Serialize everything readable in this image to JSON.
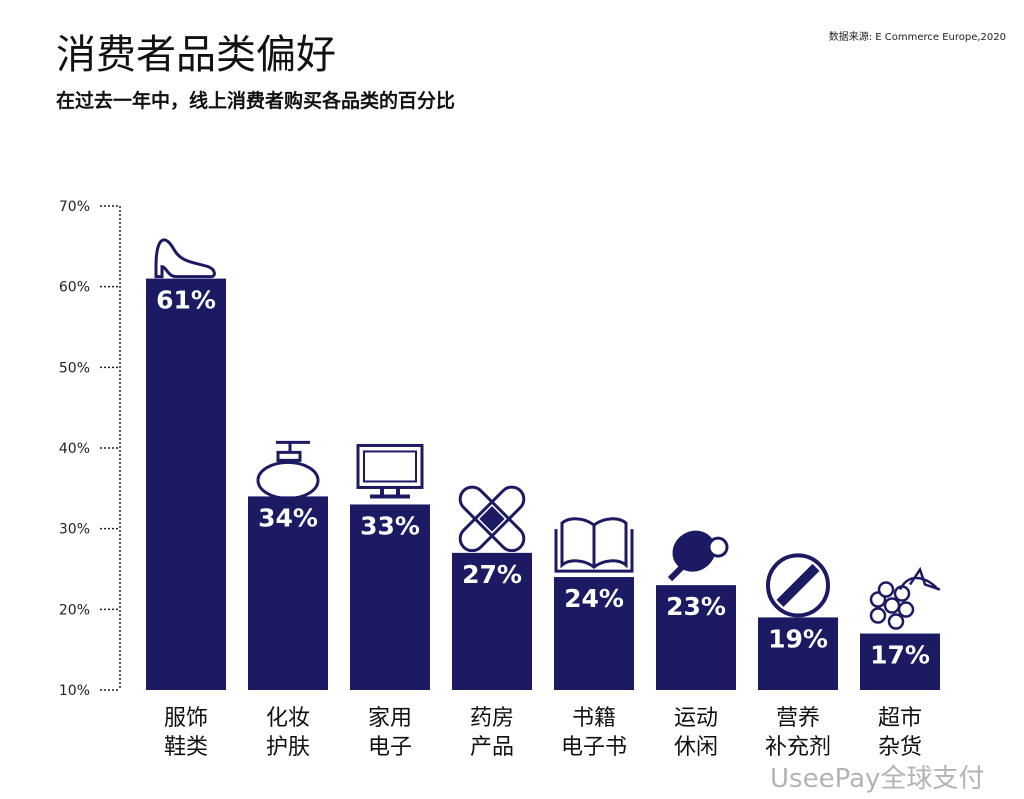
{
  "title": "消费者品类偏好",
  "subtitle": "在过去一年中，线上消费者购买各品类的百分比",
  "source": "数据来源: E Commerce Europe,2020",
  "watermark": "UseePay全球支付",
  "chart_data": {
    "type": "bar",
    "categories": [
      [
        "服饰",
        "鞋类"
      ],
      [
        "化妆",
        "护肤"
      ],
      [
        "家用",
        "电子"
      ],
      [
        "药房",
        "产品"
      ],
      [
        "书籍",
        "电子书"
      ],
      [
        "运动",
        "休闲"
      ],
      [
        "营养",
        "补充剂"
      ],
      [
        "超市",
        "杂货"
      ]
    ],
    "values": [
      61,
      34,
      33,
      27,
      24,
      23,
      19,
      17
    ],
    "data_labels": [
      "61%",
      "34%",
      "33%",
      "27%",
      "24%",
      "23%",
      "19%",
      "17%"
    ],
    "icons": [
      "high-heel-shoe-icon",
      "perfume-bottle-icon",
      "monitor-icon",
      "bandage-icon",
      "book-icon",
      "ping-pong-paddle-icon",
      "pill-icon",
      "grapes-icon"
    ],
    "ylim": [
      10,
      70
    ],
    "yticks": [
      "10%",
      "20%",
      "30%",
      "40%",
      "50%",
      "60%",
      "70%"
    ],
    "bar_color": "#1c1a63",
    "grid": false
  }
}
